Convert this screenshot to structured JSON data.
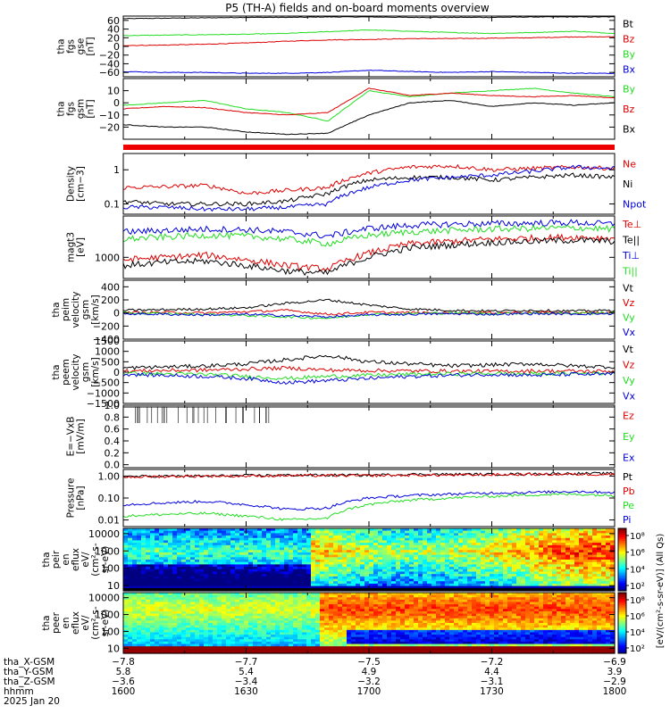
{
  "title": "P5 (TH-A) fields and on-board moments overview",
  "colors": {
    "black": "#000000",
    "red": "#dd0000",
    "green": "#22dd22",
    "blue": "#0000dd"
  },
  "chart_data": [
    {
      "type": "line",
      "ylabel": [
        "tha",
        "fgs",
        "gse",
        "[nT]"
      ],
      "ylim": [
        -70,
        70
      ],
      "y_ticks": [
        "60",
        "40",
        "20",
        "0",
        "−20",
        "−40",
        "−60"
      ],
      "y_tick_values": [
        60,
        40,
        20,
        0,
        -20,
        -40,
        -60
      ],
      "series": [
        {
          "name": "Bt",
          "color": "black",
          "values": [
            64,
            65,
            66,
            67,
            67,
            68,
            68,
            67,
            67,
            67,
            68,
            68,
            68
          ]
        },
        {
          "name": "Bz",
          "color": "red",
          "values": [
            2,
            3,
            5,
            8,
            12,
            15,
            16,
            18,
            18,
            19,
            20,
            22,
            22
          ]
        },
        {
          "name": "By",
          "color": "green",
          "values": [
            25,
            26,
            27,
            28,
            30,
            34,
            38,
            35,
            32,
            30,
            32,
            35,
            30
          ]
        },
        {
          "name": "Bx",
          "color": "blue",
          "values": [
            -58,
            -60,
            -60,
            -62,
            -62,
            -60,
            -55,
            -58,
            -60,
            -58,
            -60,
            -62,
            -62
          ]
        }
      ]
    },
    {
      "type": "line",
      "ylabel": [
        "tha",
        "fgs",
        "gsm",
        "[nT]"
      ],
      "ylim": [
        -30,
        20
      ],
      "y_ticks": [
        "10",
        "0",
        "−10",
        "−20"
      ],
      "y_tick_values": [
        10,
        0,
        -10,
        -20
      ],
      "series": [
        {
          "name": "By",
          "color": "green",
          "values": [
            -2,
            0,
            2,
            -5,
            -8,
            -15,
            10,
            5,
            8,
            10,
            12,
            8,
            5
          ]
        },
        {
          "name": "Bz",
          "color": "red",
          "values": [
            -5,
            -3,
            -4,
            -8,
            -10,
            -8,
            12,
            6,
            8,
            6,
            5,
            6,
            4
          ]
        },
        {
          "name": "Bx",
          "color": "black",
          "values": [
            -18,
            -20,
            -20,
            -24,
            -26,
            -25,
            -10,
            0,
            2,
            -3,
            0,
            -2,
            0
          ]
        }
      ]
    },
    {
      "type": "line",
      "ylabel": [
        "Density",
        "[cm−3]"
      ],
      "ylim": [
        0.05,
        3
      ],
      "log": true,
      "y_ticks": [
        "1",
        "0.1"
      ],
      "y_tick_values": [
        1,
        0.1
      ],
      "series": [
        {
          "name": "Ne",
          "color": "red",
          "values": [
            0.3,
            0.32,
            0.35,
            0.2,
            0.25,
            0.3,
            0.8,
            1.2,
            1.3,
            1.0,
            1.1,
            1.2,
            1.1
          ]
        },
        {
          "name": "Ni",
          "color": "black",
          "values": [
            0.12,
            0.1,
            0.1,
            0.1,
            0.12,
            0.2,
            0.5,
            0.6,
            0.6,
            0.5,
            0.6,
            0.7,
            0.6
          ]
        },
        {
          "name": "Npot",
          "color": "blue",
          "values": [
            0.08,
            0.08,
            0.07,
            0.07,
            0.08,
            0.1,
            0.3,
            0.5,
            0.6,
            0.7,
            0.9,
            1.2,
            1.1
          ]
        }
      ]
    },
    {
      "type": "line",
      "ylabel": [
        "magt3",
        "[eV]"
      ],
      "ylim": [
        400,
        6000
      ],
      "log": true,
      "y_ticks": [
        "1000"
      ],
      "y_tick_values": [
        1000
      ],
      "series": [
        {
          "name": "Te⊥",
          "color": "red",
          "values": [
            900,
            1000,
            1100,
            900,
            700,
            600,
            1200,
            1800,
            2000,
            2200,
            2300,
            2400,
            2300
          ]
        },
        {
          "name": "Te||",
          "color": "black",
          "values": [
            700,
            800,
            850,
            700,
            550,
            500,
            1000,
            1500,
            1700,
            1900,
            2000,
            2100,
            2000
          ]
        },
        {
          "name": "Ti⊥",
          "color": "blue",
          "values": [
            3000,
            3200,
            3400,
            3300,
            3000,
            2500,
            3500,
            4000,
            4200,
            4300,
            4400,
            4500,
            4200
          ]
        },
        {
          "name": "Ti||",
          "color": "green",
          "values": [
            2200,
            2400,
            2600,
            2500,
            2200,
            1800,
            2600,
            3000,
            3200,
            3400,
            3500,
            3600,
            3400
          ]
        }
      ]
    },
    {
      "type": "line",
      "ylabel": [
        "tha",
        "peim",
        "velocity",
        "gsm",
        "[km/s]"
      ],
      "ylim": [
        -400,
        500
      ],
      "y_ticks": [
        "400",
        "200",
        "0",
        "−200",
        "−400"
      ],
      "y_tick_values": [
        400,
        200,
        0,
        -200,
        -400
      ],
      "series": [
        {
          "name": "Vt",
          "color": "black",
          "values": [
            40,
            50,
            60,
            80,
            150,
            200,
            120,
            60,
            40,
            30,
            40,
            30,
            40
          ]
        },
        {
          "name": "Vz",
          "color": "red",
          "values": [
            5,
            10,
            0,
            20,
            40,
            -20,
            10,
            5,
            0,
            5,
            10,
            0,
            5
          ]
        },
        {
          "name": "Vy",
          "color": "green",
          "values": [
            0,
            -10,
            -20,
            -40,
            -60,
            -80,
            -20,
            -10,
            0,
            -10,
            0,
            -5,
            0
          ]
        },
        {
          "name": "Vx",
          "color": "blue",
          "values": [
            -10,
            -20,
            -30,
            -20,
            -40,
            -60,
            -30,
            -20,
            -10,
            -20,
            -10,
            -15,
            -10
          ]
        }
      ]
    },
    {
      "type": "line",
      "ylabel": [
        "tha",
        "peem",
        "velocity",
        "gsm",
        "[km/s]"
      ],
      "ylim": [
        -1500,
        1500
      ],
      "y_ticks": [
        "1500",
        "1000",
        "500",
        "0",
        "−500",
        "−1000",
        "−1500"
      ],
      "y_tick_values": [
        1500,
        1000,
        500,
        0,
        -500,
        -1000,
        -1500
      ],
      "series": [
        {
          "name": "Vt",
          "color": "black",
          "values": [
            200,
            250,
            300,
            400,
            600,
            800,
            500,
            400,
            300,
            350,
            400,
            300,
            250
          ]
        },
        {
          "name": "Vz",
          "color": "red",
          "values": [
            50,
            80,
            100,
            150,
            200,
            100,
            80,
            60,
            50,
            40,
            60,
            50,
            40
          ]
        },
        {
          "name": "Vy",
          "color": "green",
          "values": [
            -50,
            -80,
            -100,
            -200,
            -300,
            -200,
            -150,
            -100,
            -80,
            -60,
            -80,
            -60,
            -50
          ]
        },
        {
          "name": "Vx",
          "color": "blue",
          "values": [
            -100,
            -150,
            -200,
            -300,
            -500,
            -400,
            -300,
            -200,
            -150,
            -100,
            -150,
            -100,
            -100
          ]
        }
      ]
    },
    {
      "type": "line",
      "ylabel": [
        "E=−VxB",
        "[mV/m]"
      ],
      "ylim": [
        -0.05,
        1.0
      ],
      "y_ticks": [
        "1.0",
        "0.8",
        "0.6",
        "0.4",
        "0.2",
        "0.0"
      ],
      "y_tick_values": [
        1.0,
        0.8,
        0.6,
        0.4,
        0.2,
        0.0
      ],
      "series": [
        {
          "name": "Ez",
          "color": "red",
          "values": []
        },
        {
          "name": "Ey",
          "color": "green",
          "values": []
        },
        {
          "name": "Ex",
          "color": "blue",
          "values": []
        }
      ]
    },
    {
      "type": "line",
      "ylabel": [
        "Pressure",
        "[nPa]"
      ],
      "ylim": [
        0.005,
        2
      ],
      "log": true,
      "y_ticks": [
        "1.00",
        "0.10",
        "0.01"
      ],
      "y_tick_values": [
        1,
        0.1,
        0.01
      ],
      "series": [
        {
          "name": "Pt",
          "color": "black",
          "values": [
            0.95,
            1.0,
            1.0,
            1.05,
            1.1,
            1.1,
            1.1,
            1.2,
            1.2,
            1.2,
            1.25,
            1.3,
            1.3
          ]
        },
        {
          "name": "Pb",
          "color": "red",
          "values": [
            0.9,
            0.95,
            1.0,
            1.0,
            1.05,
            1.05,
            1.05,
            1.1,
            1.1,
            1.15,
            1.2,
            1.2,
            1.2
          ]
        },
        {
          "name": "Pe",
          "color": "green",
          "values": [
            0.015,
            0.018,
            0.02,
            0.015,
            0.01,
            0.012,
            0.05,
            0.08,
            0.1,
            0.12,
            0.14,
            0.15,
            0.13
          ]
        },
        {
          "name": "Pi",
          "color": "blue",
          "values": [
            0.05,
            0.06,
            0.07,
            0.05,
            0.03,
            0.035,
            0.1,
            0.13,
            0.15,
            0.17,
            0.18,
            0.2,
            0.18
          ]
        }
      ]
    },
    {
      "type": "heatmap",
      "ylabel": [
        "tha",
        "peir",
        "en",
        "eflux",
        "eV/",
        "(cm²-s-",
        "sr-eV)"
      ],
      "ylim": [
        5,
        20000
      ],
      "log": true,
      "y_ticks": [
        "10000",
        "1000",
        "100",
        "10"
      ],
      "y_tick_values": [
        10000,
        1000,
        100,
        10
      ]
    },
    {
      "type": "heatmap",
      "ylabel": [
        "tha",
        "peer",
        "en",
        "eflux",
        "eV/",
        "(cm²-s-",
        "sr-eV)"
      ],
      "ylim": [
        5,
        20000
      ],
      "log": true,
      "y_ticks": [
        "10000",
        "1000",
        "100",
        "10"
      ],
      "y_tick_values": [
        10000,
        1000,
        100,
        10
      ]
    }
  ],
  "colorbar": {
    "label": "[eV/(cm²-s-sr-eV)] (All Qs)",
    "top_ticks": [
      "10⁸",
      "10⁶",
      "10⁴",
      "10²"
    ],
    "bottom_ticks": [
      "10⁸",
      "10⁶",
      "10⁴",
      "10²"
    ]
  },
  "x_axis": {
    "rows": [
      {
        "label": "tha_X-GSM",
        "values": [
          "−7.8",
          "−7.7",
          "−7.5",
          "−7.2",
          "−6.9"
        ]
      },
      {
        "label": "tha_Y-GSM",
        "values": [
          "5.8",
          "5.4",
          "4.9",
          "4.4",
          "3.9"
        ]
      },
      {
        "label": "tha_Z-GSM",
        "values": [
          "−3.6",
          "−3.4",
          "−3.2",
          "−3.1",
          "−2.9"
        ]
      },
      {
        "label": "hhmm",
        "values": [
          "1600",
          "1630",
          "1700",
          "1730",
          "1800"
        ]
      }
    ],
    "date": "2025 Jan 20"
  }
}
